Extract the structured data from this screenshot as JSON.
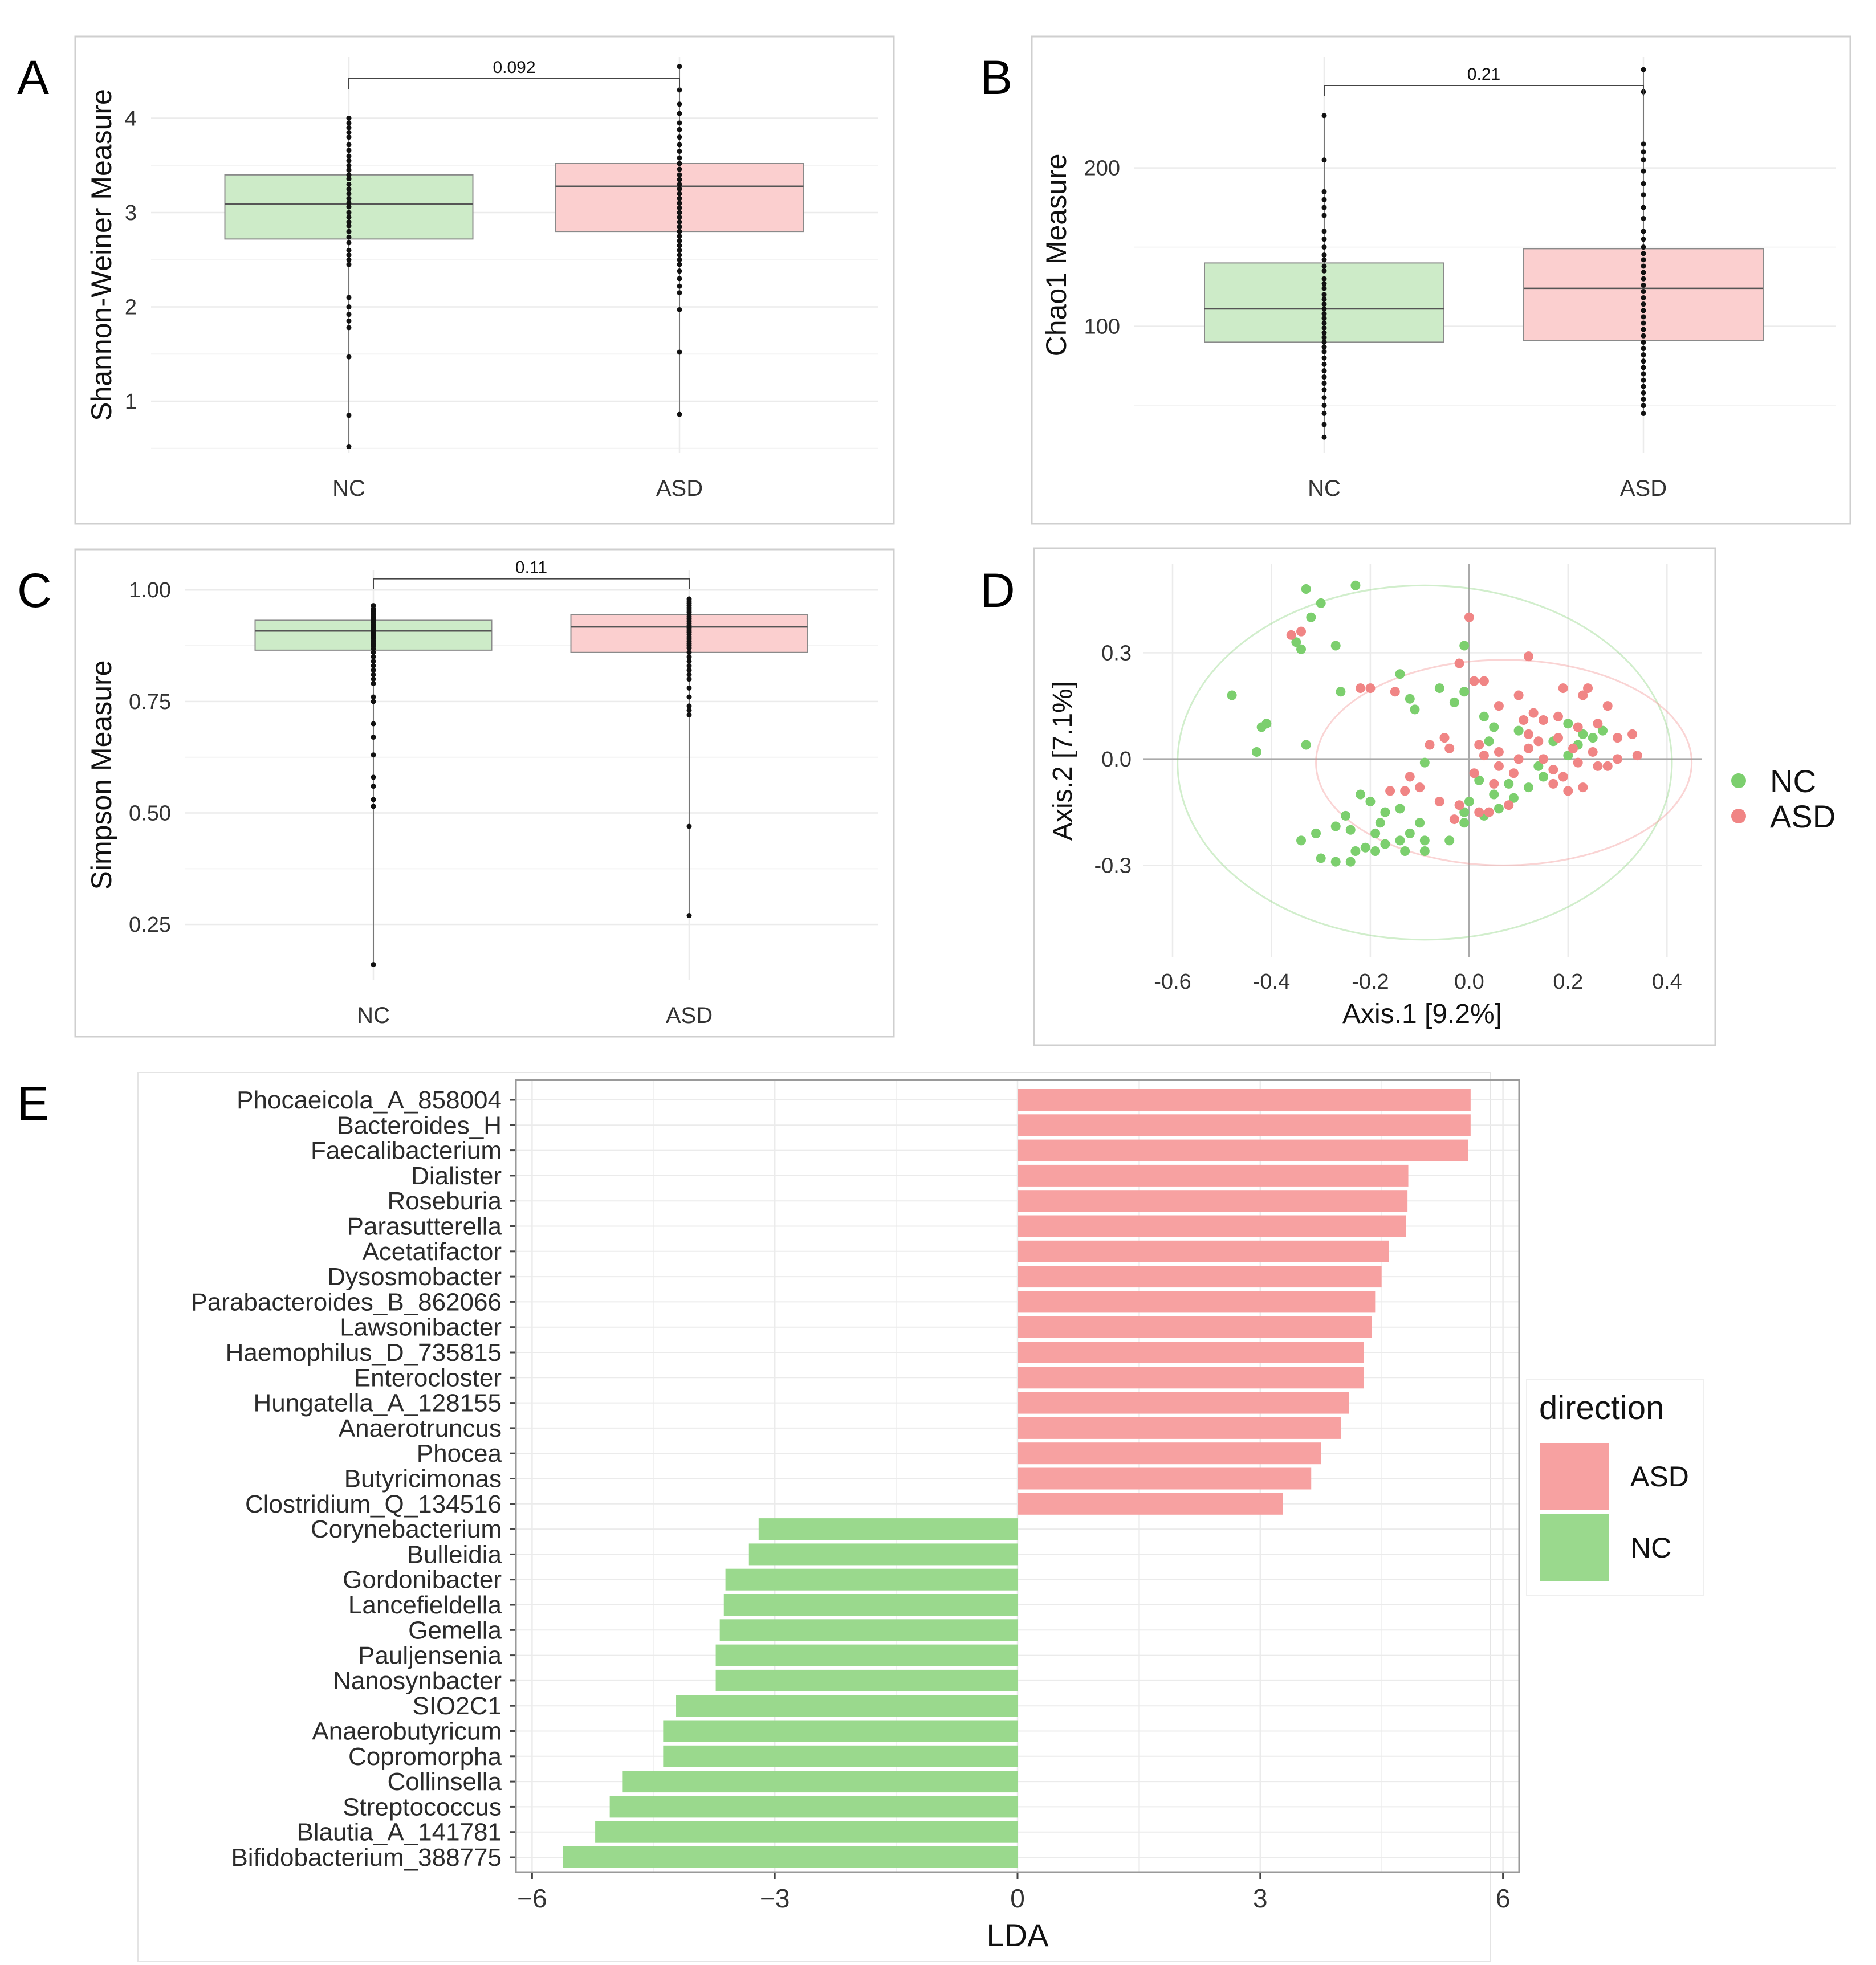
{
  "colors": {
    "nc_fill": "#cdebc8",
    "asd_fill": "#fbcfcf",
    "nc_point": "#7ccf6e",
    "asd_point": "#f08585",
    "nc_bar": "#9ad98d",
    "asd_bar": "#f7a1a1",
    "grid": "#ebebeb",
    "axis_text": "#333333",
    "frame": "#cfcfcf"
  },
  "panels": {
    "A": {
      "letter": "A"
    },
    "B": {
      "letter": "B"
    },
    "C": {
      "letter": "C"
    },
    "D": {
      "letter": "D"
    },
    "E": {
      "letter": "E"
    }
  },
  "chart_data": [
    {
      "id": "A",
      "type": "box",
      "ylabel": "Shannon-Weiner Measure",
      "categories": [
        "NC",
        "ASD"
      ],
      "ylim": [
        0.45,
        4.65
      ],
      "yticks": [
        1,
        2,
        3,
        4
      ],
      "boxes": [
        {
          "group": "NC",
          "q1": 2.72,
          "median": 3.09,
          "q3": 3.4,
          "points": [
            4.0,
            3.95,
            3.9,
            3.85,
            3.8,
            3.72,
            3.66,
            3.6,
            3.55,
            3.5,
            3.45,
            3.4,
            3.36,
            3.3,
            3.25,
            3.2,
            3.15,
            3.1,
            3.06,
            3.0,
            2.95,
            2.9,
            2.86,
            2.8,
            2.74,
            2.68,
            2.6,
            2.55,
            2.5,
            2.45,
            2.1,
            2.0,
            1.92,
            1.85,
            1.78,
            1.47,
            0.85,
            0.52
          ]
        },
        {
          "group": "ASD",
          "q1": 2.8,
          "median": 3.28,
          "q3": 3.52,
          "points": [
            4.55,
            4.3,
            4.15,
            4.05,
            3.95,
            3.88,
            3.8,
            3.72,
            3.65,
            3.58,
            3.52,
            3.46,
            3.4,
            3.35,
            3.3,
            3.25,
            3.2,
            3.15,
            3.1,
            3.05,
            3.0,
            2.95,
            2.9,
            2.85,
            2.8,
            2.75,
            2.7,
            2.65,
            2.6,
            2.55,
            2.5,
            2.45,
            2.38,
            2.3,
            2.22,
            2.15,
            1.97,
            1.52,
            0.86
          ]
        }
      ],
      "comparison": {
        "label": "0.092",
        "y": 4.42
      }
    },
    {
      "id": "B",
      "type": "box",
      "ylabel": "Chao1 Measure",
      "categories": [
        "NC",
        "ASD"
      ],
      "ylim": [
        20,
        270
      ],
      "yticks": [
        100,
        200
      ],
      "boxes": [
        {
          "group": "NC",
          "q1": 90,
          "median": 111,
          "q3": 140,
          "points": [
            233,
            205,
            185,
            180,
            175,
            170,
            160,
            155,
            150,
            145,
            142,
            138,
            135,
            130,
            127,
            124,
            120,
            117,
            114,
            111,
            108,
            105,
            102,
            99,
            96,
            93,
            90,
            87,
            84,
            80,
            76,
            72,
            68,
            64,
            60,
            55,
            50,
            45,
            38,
            30
          ]
        },
        {
          "group": "ASD",
          "q1": 91,
          "median": 124,
          "q3": 149,
          "points": [
            262,
            248,
            215,
            210,
            205,
            198,
            190,
            183,
            175,
            168,
            160,
            155,
            150,
            146,
            142,
            138,
            134,
            130,
            126,
            122,
            118,
            114,
            110,
            106,
            102,
            98,
            94,
            90,
            86,
            82,
            78,
            74,
            70,
            66,
            62,
            58,
            54,
            50,
            45
          ]
        }
      ],
      "comparison": {
        "label": "0.21",
        "y": 252
      }
    },
    {
      "id": "C",
      "type": "box",
      "ylabel": "Simpson Measure",
      "categories": [
        "NC",
        "ASD"
      ],
      "ylim": [
        0.125,
        1.045
      ],
      "yticks": [
        0.25,
        0.5,
        0.75,
        1.0
      ],
      "ytick_labels": [
        "0.25",
        "0.50",
        "0.75",
        "1.00"
      ],
      "boxes": [
        {
          "group": "NC",
          "q1": 0.865,
          "median": 0.908,
          "q3": 0.932,
          "points": [
            0.965,
            0.958,
            0.952,
            0.946,
            0.94,
            0.934,
            0.928,
            0.922,
            0.916,
            0.91,
            0.904,
            0.898,
            0.892,
            0.886,
            0.88,
            0.874,
            0.868,
            0.86,
            0.85,
            0.84,
            0.83,
            0.82,
            0.81,
            0.8,
            0.79,
            0.76,
            0.75,
            0.7,
            0.67,
            0.63,
            0.58,
            0.56,
            0.53,
            0.515,
            0.16
          ]
        },
        {
          "group": "ASD",
          "q1": 0.86,
          "median": 0.917,
          "q3": 0.945,
          "points": [
            0.98,
            0.975,
            0.97,
            0.965,
            0.96,
            0.955,
            0.95,
            0.945,
            0.94,
            0.935,
            0.93,
            0.925,
            0.92,
            0.915,
            0.91,
            0.905,
            0.9,
            0.895,
            0.89,
            0.885,
            0.88,
            0.875,
            0.87,
            0.86,
            0.85,
            0.84,
            0.83,
            0.82,
            0.81,
            0.8,
            0.78,
            0.76,
            0.74,
            0.73,
            0.72,
            0.47,
            0.27
          ]
        }
      ],
      "comparison": {
        "label": "0.11",
        "y": 1.025
      }
    },
    {
      "id": "D",
      "type": "scatter",
      "xlabel": "Axis.1   [9.2%]",
      "ylabel": "Axis.2   [7.1%]",
      "xlim": [
        -0.66,
        0.47
      ],
      "ylim": [
        -0.56,
        0.55
      ],
      "xticks": [
        -0.6,
        -0.4,
        -0.2,
        0.0,
        0.2,
        0.4
      ],
      "xtick_labels": [
        "-0.6",
        "-0.4",
        "-0.2",
        "0.0",
        "0.2",
        "0.4"
      ],
      "yticks": [
        -0.3,
        0.0,
        0.3
      ],
      "ytick_labels": [
        "-0.3",
        "0.0",
        "0.3"
      ],
      "legend": [
        "NC",
        "ASD"
      ],
      "ellipses": [
        {
          "group": "NC",
          "cx": -0.09,
          "cy": -0.01,
          "rx": 0.5,
          "ry": 0.5
        },
        {
          "group": "ASD",
          "cx": 0.07,
          "cy": -0.01,
          "rx": 0.38,
          "ry": 0.29
        }
      ],
      "series": [
        {
          "name": "NC",
          "points": [
            [
              -0.33,
              0.48
            ],
            [
              -0.23,
              0.49
            ],
            [
              -0.3,
              0.44
            ],
            [
              -0.32,
              0.4
            ],
            [
              -0.35,
              0.33
            ],
            [
              -0.34,
              0.31
            ],
            [
              -0.27,
              0.32
            ],
            [
              -0.48,
              0.18
            ],
            [
              -0.41,
              0.1
            ],
            [
              -0.42,
              0.09
            ],
            [
              -0.43,
              0.02
            ],
            [
              -0.33,
              0.04
            ],
            [
              -0.26,
              0.19
            ],
            [
              -0.14,
              0.24
            ],
            [
              -0.12,
              0.17
            ],
            [
              -0.01,
              0.32
            ],
            [
              -0.06,
              0.2
            ],
            [
              -0.11,
              0.14
            ],
            [
              -0.01,
              0.19
            ],
            [
              -0.03,
              0.16
            ],
            [
              -0.09,
              -0.01
            ],
            [
              0.03,
              0.12
            ],
            [
              0.05,
              0.09
            ],
            [
              0.04,
              0.05
            ],
            [
              0.1,
              0.08
            ],
            [
              0.2,
              0.1
            ],
            [
              0.17,
              0.05
            ],
            [
              0.23,
              0.07
            ],
            [
              0.22,
              0.04
            ],
            [
              0.25,
              0.06
            ],
            [
              0.27,
              0.08
            ],
            [
              0.2,
              0.01
            ],
            [
              0.14,
              -0.02
            ],
            [
              0.15,
              -0.05
            ],
            [
              0.12,
              -0.08
            ],
            [
              0.08,
              -0.07
            ],
            [
              0.02,
              -0.06
            ],
            [
              0.05,
              -0.1
            ],
            [
              0.0,
              -0.12
            ],
            [
              0.09,
              -0.11
            ],
            [
              -0.01,
              -0.15
            ],
            [
              -0.01,
              -0.18
            ],
            [
              0.03,
              -0.16
            ],
            [
              0.06,
              -0.14
            ],
            [
              -0.22,
              -0.1
            ],
            [
              -0.2,
              -0.12
            ],
            [
              -0.17,
              -0.15
            ],
            [
              -0.18,
              -0.18
            ],
            [
              -0.14,
              -0.14
            ],
            [
              -0.1,
              -0.18
            ],
            [
              -0.12,
              -0.21
            ],
            [
              -0.09,
              -0.23
            ],
            [
              -0.04,
              -0.23
            ],
            [
              -0.09,
              -0.26
            ],
            [
              -0.13,
              -0.26
            ],
            [
              -0.14,
              -0.23
            ],
            [
              -0.17,
              -0.24
            ],
            [
              -0.19,
              -0.26
            ],
            [
              -0.21,
              -0.25
            ],
            [
              -0.23,
              -0.26
            ],
            [
              -0.24,
              -0.29
            ],
            [
              -0.27,
              -0.29
            ],
            [
              -0.3,
              -0.28
            ],
            [
              -0.34,
              -0.23
            ],
            [
              -0.31,
              -0.21
            ],
            [
              -0.27,
              -0.19
            ],
            [
              -0.19,
              -0.21
            ],
            [
              -0.25,
              -0.16
            ],
            [
              -0.24,
              -0.2
            ]
          ]
        },
        {
          "name": "ASD",
          "points": [
            [
              -0.36,
              0.35
            ],
            [
              -0.34,
              0.36
            ],
            [
              -0.22,
              0.2
            ],
            [
              -0.2,
              0.2
            ],
            [
              -0.15,
              0.19
            ],
            [
              -0.02,
              0.27
            ],
            [
              0.0,
              0.4
            ],
            [
              0.01,
              0.22
            ],
            [
              0.03,
              0.22
            ],
            [
              0.06,
              0.15
            ],
            [
              0.1,
              0.18
            ],
            [
              0.13,
              0.13
            ],
            [
              0.12,
              0.29
            ],
            [
              0.15,
              0.11
            ],
            [
              0.18,
              0.12
            ],
            [
              0.22,
              0.09
            ],
            [
              0.26,
              0.1
            ],
            [
              0.23,
              0.18
            ],
            [
              0.19,
              0.2
            ],
            [
              0.24,
              0.2
            ],
            [
              0.28,
              0.15
            ],
            [
              0.3,
              0.06
            ],
            [
              0.33,
              0.07
            ],
            [
              0.34,
              0.01
            ],
            [
              0.3,
              0.0
            ],
            [
              0.28,
              -0.02
            ],
            [
              0.26,
              -0.02
            ],
            [
              0.25,
              0.02
            ],
            [
              0.22,
              -0.01
            ],
            [
              0.21,
              0.03
            ],
            [
              0.18,
              0.06
            ],
            [
              0.17,
              -0.03
            ],
            [
              0.15,
              0.0
            ],
            [
              0.12,
              0.03
            ],
            [
              0.1,
              0.0
            ],
            [
              0.09,
              -0.04
            ],
            [
              0.06,
              -0.02
            ],
            [
              0.08,
              -0.13
            ],
            [
              0.04,
              -0.15
            ],
            [
              0.02,
              -0.15
            ],
            [
              -0.02,
              -0.13
            ],
            [
              -0.03,
              -0.17
            ],
            [
              -0.06,
              -0.12
            ],
            [
              -0.1,
              -0.08
            ],
            [
              -0.12,
              -0.05
            ],
            [
              -0.13,
              -0.09
            ],
            [
              -0.16,
              -0.09
            ],
            [
              -0.05,
              0.06
            ],
            [
              -0.08,
              0.04
            ],
            [
              -0.04,
              0.03
            ],
            [
              0.02,
              0.04
            ],
            [
              0.03,
              0.01
            ],
            [
              0.01,
              -0.04
            ],
            [
              0.05,
              -0.07
            ],
            [
              0.06,
              0.02
            ],
            [
              0.11,
              0.11
            ],
            [
              0.14,
              0.05
            ],
            [
              0.19,
              -0.05
            ],
            [
              0.17,
              -0.07
            ],
            [
              0.2,
              -0.09
            ],
            [
              0.23,
              -0.08
            ],
            [
              0.12,
              0.07
            ]
          ]
        }
      ]
    },
    {
      "id": "E",
      "type": "bar",
      "orientation": "horizontal",
      "xlabel": "LDA",
      "xlim": [
        -6.2,
        6.2
      ],
      "xticks": [
        -6,
        -3,
        0,
        3,
        6
      ],
      "xtick_labels": [
        "−6",
        "−3",
        "0",
        "3",
        "6"
      ],
      "legend_title": "direction",
      "legend": [
        "ASD",
        "NC"
      ],
      "categories": [
        "Phocaeicola_A_858004",
        "Bacteroides_H",
        "Faecalibacterium",
        "Dialister",
        "Roseburia",
        "Parasutterella",
        "Acetatifactor",
        "Dysosmobacter",
        "Parabacteroides_B_862066",
        "Lawsonibacter",
        "Haemophilus_D_735815",
        "Enterocloster",
        "Hungatella_A_128155",
        "Anaerotruncus",
        "Phocea",
        "Butyricimonas",
        "Clostridium_Q_134516",
        "Corynebacterium",
        "Bulleidia",
        "Gordonibacter",
        "Lancefieldella",
        "Gemella",
        "Pauljensenia",
        "Nanosynbacter",
        "SIO2C1",
        "Anaerobutyricum",
        "Copromorpha",
        "Collinsella",
        "Streptococcus",
        "Blautia_A_141781",
        "Bifidobacterium_388775"
      ],
      "values": [
        5.6,
        5.6,
        5.57,
        4.83,
        4.82,
        4.8,
        4.59,
        4.5,
        4.42,
        4.38,
        4.28,
        4.28,
        4.1,
        4.0,
        3.75,
        3.63,
        3.28,
        -3.2,
        -3.32,
        -3.61,
        -3.63,
        -3.68,
        -3.73,
        -3.73,
        -4.22,
        -4.38,
        -4.38,
        -4.88,
        -5.04,
        -5.22,
        -5.62
      ],
      "groups": [
        "ASD",
        "ASD",
        "ASD",
        "ASD",
        "ASD",
        "ASD",
        "ASD",
        "ASD",
        "ASD",
        "ASD",
        "ASD",
        "ASD",
        "ASD",
        "ASD",
        "ASD",
        "ASD",
        "ASD",
        "NC",
        "NC",
        "NC",
        "NC",
        "NC",
        "NC",
        "NC",
        "NC",
        "NC",
        "NC",
        "NC",
        "NC",
        "NC",
        "NC"
      ]
    }
  ]
}
